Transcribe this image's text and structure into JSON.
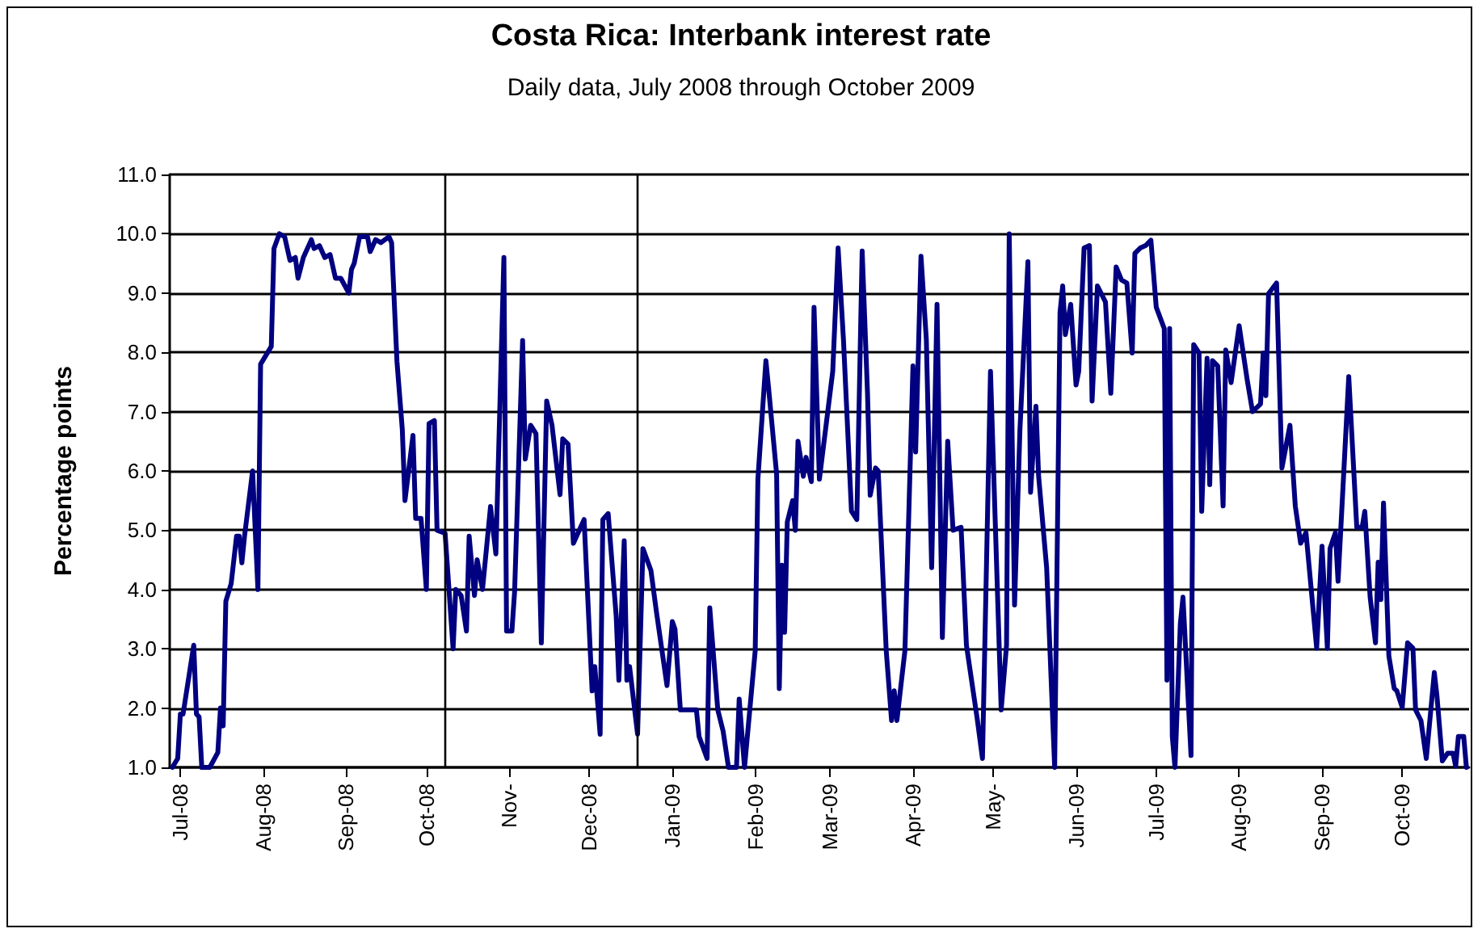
{
  "chart_data": {
    "type": "line",
    "title": "Costa Rica: Interbank interest rate",
    "subtitle": "Daily data, July 2008 through October 2009",
    "ylabel": "Percentage points",
    "xlim": [
      "2008-06-27",
      "2009-10-26"
    ],
    "xticks": [
      {
        "value": "2008-07-01",
        "label": "Jul-08"
      },
      {
        "value": "2008-08-01",
        "label": "Aug-08"
      },
      {
        "value": "2008-09-01",
        "label": "Sep-08"
      },
      {
        "value": "2008-10-01",
        "label": "Oct-08"
      },
      {
        "value": "2008-11-01",
        "label": "Nov-"
      },
      {
        "value": "2008-12-01",
        "label": "Dec-08"
      },
      {
        "value": "2009-01-01",
        "label": "Jan-09"
      },
      {
        "value": "2009-02-01",
        "label": "Feb-09"
      },
      {
        "value": "2009-03-01",
        "label": "Mar-09"
      },
      {
        "value": "2009-04-01",
        "label": "Apr-09"
      },
      {
        "value": "2009-05-01",
        "label": "May-"
      },
      {
        "value": "2009-06-01",
        "label": "Jun-09"
      },
      {
        "value": "2009-07-01",
        "label": "Jul-09"
      },
      {
        "value": "2009-08-01",
        "label": "Aug-09"
      },
      {
        "value": "2009-09-01",
        "label": "Sep-09"
      },
      {
        "value": "2009-10-01",
        "label": "Oct-09"
      }
    ],
    "ylim": [
      1,
      11
    ],
    "yticks": [
      {
        "value": 1,
        "label": "1.0"
      },
      {
        "value": 2,
        "label": "2.0"
      },
      {
        "value": 3,
        "label": "3.0"
      },
      {
        "value": 4,
        "label": "4.0"
      },
      {
        "value": 5,
        "label": "5.0"
      },
      {
        "value": 6,
        "label": "6.0"
      },
      {
        "value": 7,
        "label": "7.0"
      },
      {
        "value": 8,
        "label": "8.0"
      },
      {
        "value": 9,
        "label": "9.0"
      },
      {
        "value": 10,
        "label": "10.0"
      },
      {
        "value": 11,
        "label": "11.0"
      }
    ],
    "grid": "y",
    "marker": "none",
    "line_style": "solid",
    "ref_lines": [
      {
        "axis": "x",
        "value": "2008-10-08",
        "color": "#000000"
      },
      {
        "axis": "x",
        "value": "2008-12-19",
        "color": "#000000"
      }
    ],
    "x": [
      "2008-06-28",
      "2008-06-30",
      "2008-07-01",
      "2008-07-02",
      "2008-07-06",
      "2008-07-07",
      "2008-07-08",
      "2008-07-09",
      "2008-07-12",
      "2008-07-15",
      "2008-07-16",
      "2008-07-17",
      "2008-07-18",
      "2008-07-20",
      "2008-07-22",
      "2008-07-23",
      "2008-07-24",
      "2008-07-25",
      "2008-07-28",
      "2008-07-30",
      "2008-07-31",
      "2008-08-04",
      "2008-08-05",
      "2008-08-07",
      "2008-08-09",
      "2008-08-11",
      "2008-08-13",
      "2008-08-14",
      "2008-08-16",
      "2008-08-19",
      "2008-08-20",
      "2008-08-22",
      "2008-08-24",
      "2008-08-26",
      "2008-08-28",
      "2008-08-30",
      "2008-09-02",
      "2008-09-03",
      "2008-09-04",
      "2008-09-06",
      "2008-09-09",
      "2008-09-10",
      "2008-09-12",
      "2008-09-14",
      "2008-09-17",
      "2008-09-18",
      "2008-09-20",
      "2008-09-22",
      "2008-09-23",
      "2008-09-26",
      "2008-09-27",
      "2008-09-29",
      "2008-10-01",
      "2008-10-02",
      "2008-10-04",
      "2008-10-05",
      "2008-10-08",
      "2008-10-11",
      "2008-10-12",
      "2008-10-14",
      "2008-10-16",
      "2008-10-17",
      "2008-10-19",
      "2008-10-20",
      "2008-10-22",
      "2008-10-25",
      "2008-10-27",
      "2008-10-30",
      "2008-10-31",
      "2008-11-02",
      "2008-11-03",
      "2008-11-06",
      "2008-11-07",
      "2008-11-09",
      "2008-11-11",
      "2008-11-13",
      "2008-11-15",
      "2008-11-17",
      "2008-11-20",
      "2008-11-21",
      "2008-11-23",
      "2008-11-25",
      "2008-11-29",
      "2008-12-02",
      "2008-12-03",
      "2008-12-05",
      "2008-12-06",
      "2008-12-08",
      "2008-12-11",
      "2008-12-12",
      "2008-12-14",
      "2008-12-15",
      "2008-12-16",
      "2008-12-19",
      "2008-12-21",
      "2008-12-24",
      "2008-12-26",
      "2008-12-30",
      "2009-01-01",
      "2009-01-02",
      "2009-01-04",
      "2009-01-10",
      "2009-01-11",
      "2009-01-14",
      "2009-01-15",
      "2009-01-18",
      "2009-01-20",
      "2009-01-22",
      "2009-01-25",
      "2009-01-26",
      "2009-01-28",
      "2009-02-01",
      "2009-02-02",
      "2009-02-05",
      "2009-02-06",
      "2009-02-09",
      "2009-02-10",
      "2009-02-11",
      "2009-02-12",
      "2009-02-13",
      "2009-02-15",
      "2009-02-16",
      "2009-02-17",
      "2009-02-19",
      "2009-02-20",
      "2009-02-22",
      "2009-02-23",
      "2009-02-25",
      "2009-03-02",
      "2009-03-04",
      "2009-03-06",
      "2009-03-09",
      "2009-03-11",
      "2009-03-13",
      "2009-03-15",
      "2009-03-16",
      "2009-03-18",
      "2009-03-19",
      "2009-03-22",
      "2009-03-24",
      "2009-03-25",
      "2009-03-26",
      "2009-03-29",
      "2009-04-01",
      "2009-04-02",
      "2009-04-04",
      "2009-04-06",
      "2009-04-08",
      "2009-04-10",
      "2009-04-12",
      "2009-04-14",
      "2009-04-16",
      "2009-04-19",
      "2009-04-21",
      "2009-04-25",
      "2009-04-27",
      "2009-04-30",
      "2009-05-04",
      "2009-05-06",
      "2009-05-07",
      "2009-05-09",
      "2009-05-11",
      "2009-05-14",
      "2009-05-15",
      "2009-05-17",
      "2009-05-18",
      "2009-05-21",
      "2009-05-24",
      "2009-05-26",
      "2009-05-27",
      "2009-05-28",
      "2009-05-30",
      "2009-06-01",
      "2009-06-02",
      "2009-06-04",
      "2009-06-06",
      "2009-06-07",
      "2009-06-09",
      "2009-06-12",
      "2009-06-14",
      "2009-06-16",
      "2009-06-18",
      "2009-06-20",
      "2009-06-22",
      "2009-06-23",
      "2009-06-25",
      "2009-06-27",
      "2009-06-29",
      "2009-07-01",
      "2009-07-04",
      "2009-07-05",
      "2009-07-06",
      "2009-07-07",
      "2009-07-08",
      "2009-07-10",
      "2009-07-11",
      "2009-07-14",
      "2009-07-15",
      "2009-07-17",
      "2009-07-18",
      "2009-07-20",
      "2009-07-21",
      "2009-07-22",
      "2009-07-24",
      "2009-07-26",
      "2009-07-27",
      "2009-07-29",
      "2009-08-01",
      "2009-08-04",
      "2009-08-06",
      "2009-08-09",
      "2009-08-10",
      "2009-08-11",
      "2009-08-12",
      "2009-08-15",
      "2009-08-17",
      "2009-08-20",
      "2009-08-22",
      "2009-08-24",
      "2009-08-26",
      "2009-08-30",
      "2009-09-01",
      "2009-09-03",
      "2009-09-04",
      "2009-09-06",
      "2009-09-07",
      "2009-09-09",
      "2009-09-11",
      "2009-09-14",
      "2009-09-16",
      "2009-09-17",
      "2009-09-19",
      "2009-09-21",
      "2009-09-22",
      "2009-09-23",
      "2009-09-24",
      "2009-09-26",
      "2009-09-28",
      "2009-09-29",
      "2009-10-01",
      "2009-10-03",
      "2009-10-05",
      "2009-10-06",
      "2009-10-08",
      "2009-10-10",
      "2009-10-13",
      "2009-10-14",
      "2009-10-16",
      "2009-10-18",
      "2009-10-20",
      "2009-10-21",
      "2009-10-22",
      "2009-10-24",
      "2009-10-25"
    ],
    "series": [
      {
        "color": "#000080",
        "values": [
          1.0,
          1.15,
          1.9,
          1.9,
          3.06,
          1.9,
          1.85,
          1.0,
          1.0,
          1.25,
          2.0,
          1.7,
          3.8,
          4.1,
          4.9,
          4.9,
          4.45,
          4.9,
          6.0,
          4.0,
          7.8,
          8.1,
          9.75,
          10.0,
          9.95,
          9.55,
          9.6,
          9.25,
          9.6,
          9.9,
          9.75,
          9.8,
          9.6,
          9.65,
          9.25,
          9.25,
          9.0,
          9.4,
          9.5,
          9.95,
          9.95,
          9.7,
          9.9,
          9.85,
          9.95,
          9.85,
          7.85,
          6.7,
          5.5,
          6.6,
          5.2,
          5.2,
          4.0,
          6.8,
          6.85,
          5.0,
          4.95,
          3.0,
          4.0,
          3.9,
          3.3,
          4.9,
          3.9,
          4.5,
          4.0,
          5.4,
          4.6,
          9.6,
          3.3,
          3.3,
          3.96,
          8.2,
          6.2,
          6.77,
          6.63,
          3.1,
          7.18,
          6.77,
          5.6,
          6.54,
          6.45,
          4.78,
          5.18,
          2.29,
          2.7,
          1.56,
          5.18,
          5.28,
          3.55,
          2.47,
          4.82,
          2.47,
          2.7,
          1.56,
          4.69,
          4.32,
          3.64,
          2.38,
          3.46,
          3.33,
          1.97,
          1.97,
          1.52,
          1.15,
          3.69,
          1.97,
          1.61,
          1.0,
          1.0,
          2.15,
          1.0,
          2.97,
          5.86,
          7.86,
          7.4,
          5.95,
          2.33,
          4.41,
          3.28,
          5.14,
          5.5,
          5.0,
          6.5,
          5.91,
          6.23,
          5.82,
          8.76,
          5.86,
          7.68,
          9.76,
          8.22,
          5.32,
          5.18,
          9.71,
          7.31,
          5.59,
          6.05,
          6.0,
          2.97,
          1.79,
          2.29,
          1.79,
          2.97,
          7.77,
          6.32,
          9.62,
          8.22,
          4.37,
          8.81,
          3.19,
          6.5,
          5.0,
          5.05,
          3.06,
          1.83,
          1.15,
          7.68,
          1.97,
          3.06,
          10.0,
          3.74,
          6.68,
          9.53,
          5.64,
          7.09,
          5.91,
          4.37,
          1.0,
          8.67,
          9.12,
          8.3,
          8.81,
          7.45,
          7.68,
          9.76,
          9.8,
          7.18,
          9.12,
          8.85,
          7.31,
          9.44,
          9.22,
          9.17,
          7.99,
          9.67,
          9.76,
          9.8,
          9.89,
          8.76,
          8.4,
          2.47,
          8.4,
          1.52,
          1.0,
          3.42,
          3.87,
          1.2,
          8.13,
          7.99,
          5.32,
          7.9,
          5.77,
          7.86,
          7.77,
          5.41,
          8.04,
          7.49,
          8.45,
          7.54,
          7.0,
          7.13,
          7.99,
          7.27,
          8.99,
          9.17,
          6.05,
          6.77,
          5.41,
          4.78,
          4.96,
          3.01,
          4.73,
          3.01,
          4.69,
          4.96,
          4.14,
          5.86,
          7.59,
          5.05,
          5.05,
          5.32,
          3.87,
          3.1,
          4.46,
          3.83,
          5.46,
          2.88,
          2.33,
          2.29,
          2.01,
          3.1,
          3.01,
          1.97,
          1.79,
          1.15,
          2.6,
          2.2,
          1.11,
          1.24,
          1.24,
          1.02,
          1.52,
          1.52,
          1.0
        ]
      }
    ]
  }
}
